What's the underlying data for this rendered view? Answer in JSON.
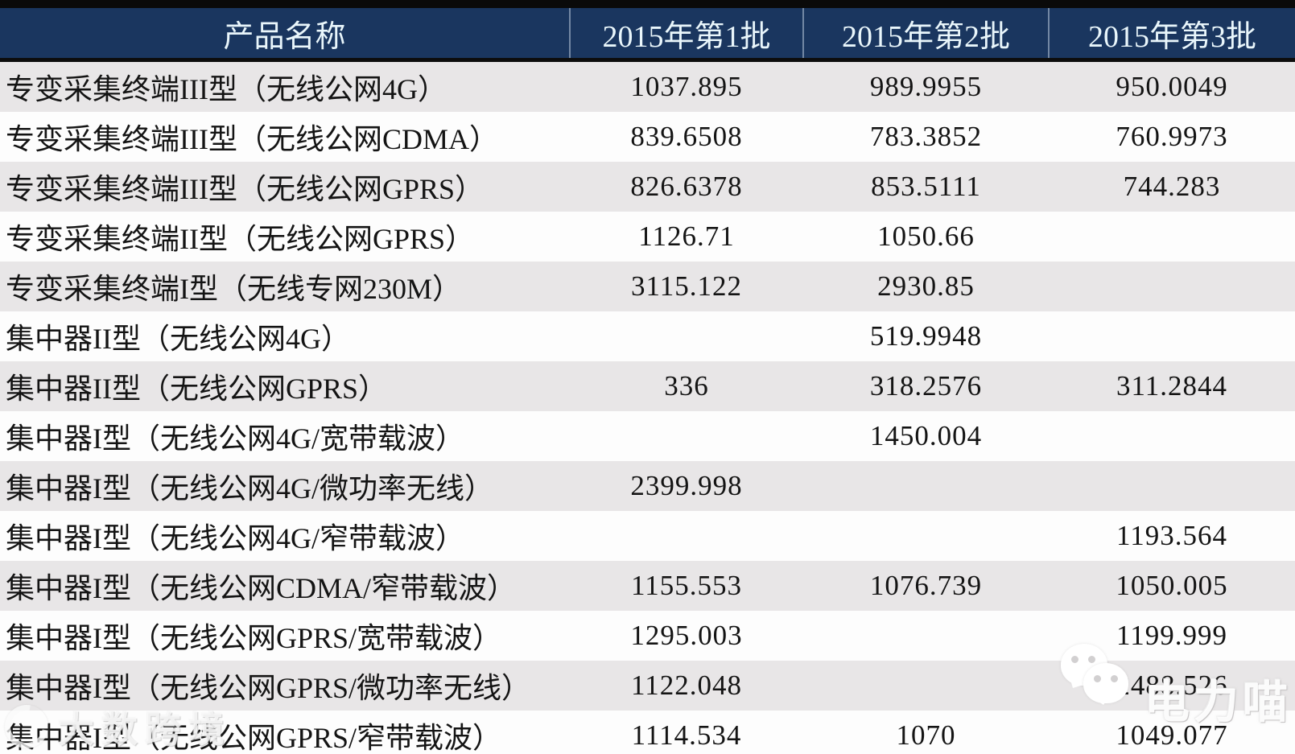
{
  "table": {
    "headers": [
      "产品名称",
      "2015年第1批",
      "2015年第2批",
      "2015年第3批"
    ],
    "rows": [
      {
        "name": "专变采集终端III型（无线公网4G）",
        "b1": "1037.895",
        "b2": "989.9955",
        "b3": "950.0049"
      },
      {
        "name": "专变采集终端III型（无线公网CDMA）",
        "b1": "839.6508",
        "b2": "783.3852",
        "b3": "760.9973"
      },
      {
        "name": "专变采集终端III型（无线公网GPRS）",
        "b1": "826.6378",
        "b2": "853.5111",
        "b3": "744.283"
      },
      {
        "name": "专变采集终端II型（无线公网GPRS）",
        "b1": "1126.71",
        "b2": "1050.66",
        "b3": ""
      },
      {
        "name": "专变采集终端I型（无线专网230M）",
        "b1": "3115.122",
        "b2": "2930.85",
        "b3": ""
      },
      {
        "name": "集中器II型（无线公网4G）",
        "b1": "",
        "b2": "519.9948",
        "b3": ""
      },
      {
        "name": "集中器II型（无线公网GPRS）",
        "b1": "336",
        "b2": "318.2576",
        "b3": "311.2844"
      },
      {
        "name": "集中器I型（无线公网4G/宽带载波）",
        "b1": "",
        "b2": "1450.004",
        "b3": ""
      },
      {
        "name": "集中器I型（无线公网4G/微功率无线）",
        "b1": "2399.998",
        "b2": "",
        "b3": ""
      },
      {
        "name": "集中器I型（无线公网4G/窄带载波）",
        "b1": "",
        "b2": "",
        "b3": "1193.564"
      },
      {
        "name": "集中器I型（无线公网CDMA/窄带载波）",
        "b1": "1155.553",
        "b2": "1076.739",
        "b3": "1050.005"
      },
      {
        "name": "集中器I型（无线公网GPRS/宽带载波）",
        "b1": "1295.003",
        "b2": "",
        "b3": "1199.999"
      },
      {
        "name": "集中器I型（无线公网GPRS/微功率无线）",
        "b1": "1122.048",
        "b2": "",
        "b3": "2488.526"
      },
      {
        "name": "集中器I型（无线公网GPRS/窄带载波）",
        "b1": "1114.534",
        "b2": "1070",
        "b3": "1049.077"
      }
    ]
  },
  "watermarks": {
    "left": {
      "icon": "circle-c-logo-icon",
      "text": "大数跨境"
    },
    "wechat": {
      "icon": "wechat-bubbles-icon",
      "text": "电力喵"
    }
  },
  "colors": {
    "header_bg": "#1A365F",
    "header_text": "#E9F6FB",
    "row_alt_bg": "#E8E6E7",
    "row_bg": "#FDFDFD",
    "border_black": "#0A0A0A"
  }
}
